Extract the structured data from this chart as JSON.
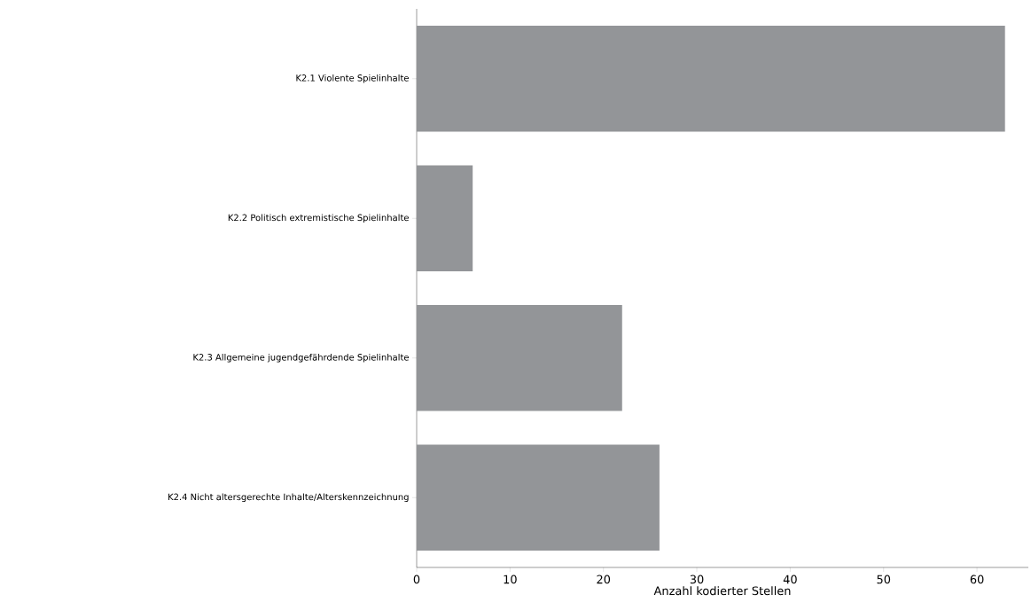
{
  "chart_data": {
    "type": "bar",
    "orientation": "horizontal",
    "categories": [
      "K2.1 Violente Spielinhalte",
      "K2.2 Politisch extremistische Spielinhalte",
      "K2.3 Allgemeine jugendgefährdende Spielinhalte",
      "K2.4 Nicht altersgerechte Inhalte/Alterskennzeichnung"
    ],
    "values": [
      63,
      6,
      22,
      26
    ],
    "color": "#939598",
    "xlim": [
      0,
      65.5
    ],
    "xticks": [
      0,
      10,
      20,
      30,
      40,
      50,
      60
    ],
    "xlabel": "Anzahl kodierter Stellen",
    "grid": false
  }
}
